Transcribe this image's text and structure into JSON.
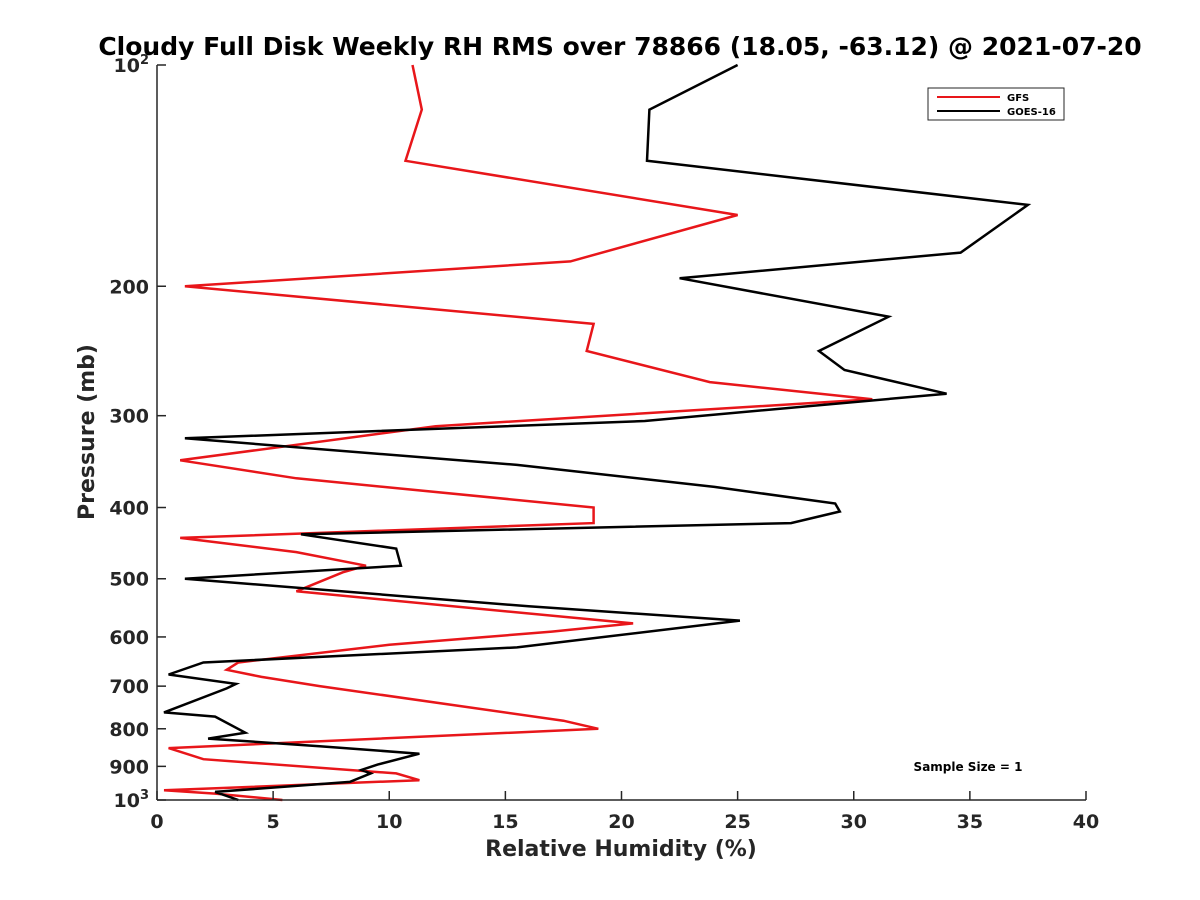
{
  "chart_data": {
    "type": "line",
    "title": "Cloudy Full Disk Weekly RH RMS over 78866 (18.05, -63.12) @ 2021-07-20",
    "xlabel": "Relative Humidity (%)",
    "ylabel": "Pressure (mb)",
    "xlim": [
      0,
      40
    ],
    "ylim": [
      100,
      1000
    ],
    "y_scale": "log",
    "y_reversed": true,
    "x_ticks": [
      0,
      5,
      10,
      15,
      20,
      25,
      30,
      35,
      40
    ],
    "x_tick_labels": [
      "0",
      "5",
      "10",
      "15",
      "20",
      "25",
      "30",
      "35",
      "40"
    ],
    "y_ticks": [
      {
        "value": 100,
        "base": "10",
        "exp": "2"
      },
      {
        "value": 200,
        "label": "200"
      },
      {
        "value": 300,
        "label": "300"
      },
      {
        "value": 400,
        "label": "400"
      },
      {
        "value": 500,
        "label": "500"
      },
      {
        "value": 600,
        "label": "600"
      },
      {
        "value": 700,
        "label": "700"
      },
      {
        "value": 800,
        "label": "800"
      },
      {
        "value": 900,
        "label": "900"
      },
      {
        "value": 1000,
        "base": "10",
        "exp": "3"
      }
    ],
    "legend": {
      "placement": "top-right"
    },
    "annotation": "Sample Size = 1",
    "series": [
      {
        "name": "GFS",
        "color": "#e8161a",
        "x": [
          11.0,
          11.4,
          10.7,
          25.0,
          17.8,
          1.2,
          18.8,
          18.5,
          23.8,
          30.8,
          12.0,
          1.0,
          6.0,
          18.8,
          18.8,
          1.0,
          6.0,
          9.0,
          8.0,
          6.0,
          20.5,
          17.0,
          10.0,
          3.5,
          3.0,
          4.5,
          7.0,
          17.5,
          19.0,
          0.5,
          2.0,
          10.3,
          11.3,
          0.3,
          2.5,
          5.4
        ],
        "y": [
          100,
          115,
          135,
          160,
          185,
          200,
          225,
          245,
          270,
          285,
          310,
          345,
          365,
          400,
          420,
          440,
          460,
          480,
          490,
          520,
          575,
          590,
          615,
          650,
          665,
          680,
          700,
          780,
          800,
          850,
          880,
          920,
          940,
          970,
          980,
          1000
        ]
      },
      {
        "name": "GOES-16",
        "color": "#000000",
        "x": [
          25.0,
          21.2,
          21.1,
          37.5,
          34.6,
          22.5,
          31.5,
          28.5,
          29.6,
          34.0,
          21.0,
          1.2,
          15.5,
          24.0,
          29.2,
          29.4,
          27.3,
          6.2,
          10.3,
          10.5,
          1.2,
          16.0,
          25.1,
          15.5,
          2.0,
          0.5,
          3.4,
          3.0,
          0.3,
          2.5,
          3.8,
          2.2,
          7.0,
          11.3,
          9.5,
          8.8,
          9.2,
          8.3,
          2.5,
          3.5
        ],
        "y": [
          100,
          115,
          135,
          155,
          180,
          195,
          220,
          245,
          260,
          280,
          305,
          322,
          350,
          375,
          395,
          405,
          420,
          435,
          455,
          480,
          500,
          545,
          570,
          620,
          650,
          675,
          695,
          705,
          760,
          770,
          810,
          825,
          845,
          865,
          895,
          910,
          920,
          945,
          975,
          1000
        ]
      }
    ]
  }
}
